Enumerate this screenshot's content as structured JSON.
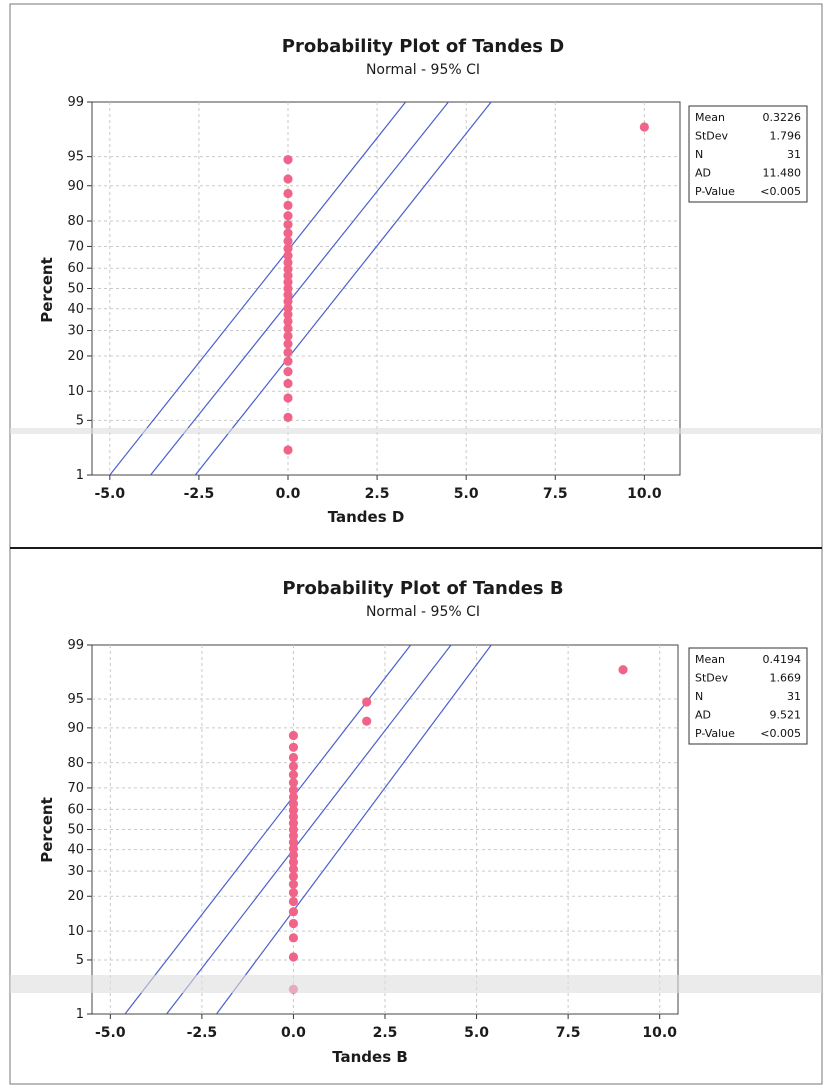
{
  "chart_data": [
    {
      "type": "scatter",
      "title": "Probability Plot of Tandes D",
      "subtitle": "Normal - 95% CI",
      "xlabel": "Tandes D",
      "ylabel": "Percent",
      "xlim": [
        -5.5,
        11.0
      ],
      "x_ticks": [
        "-5.0",
        "-2.5",
        "0.0",
        "2.5",
        "5.0",
        "7.5",
        "10.0"
      ],
      "y_ticks": [
        "1",
        "5",
        "10",
        "20",
        "30",
        "40",
        "50",
        "60",
        "70",
        "80",
        "90",
        "95",
        "99"
      ],
      "grid": true,
      "points": {
        "x": [
          0,
          0,
          0,
          0,
          0,
          0,
          0,
          0,
          0,
          0,
          0,
          0,
          0,
          0,
          0,
          0,
          0,
          0,
          0,
          0,
          0,
          0,
          0,
          0,
          0,
          0,
          0,
          0,
          0,
          0,
          10
        ],
        "y": [
          2.2,
          5.4,
          8.6,
          11.8,
          15.0,
          18.2,
          21.3,
          24.5,
          27.7,
          30.9,
          34.1,
          37.3,
          40.4,
          43.6,
          46.8,
          50.0,
          53.2,
          56.4,
          59.6,
          62.7,
          65.9,
          69.1,
          72.3,
          75.5,
          78.7,
          81.8,
          85.0,
          88.2,
          91.4,
          94.6,
          97.8
        ]
      },
      "fit_line": {
        "mean": 0.3226,
        "stdev": 1.796
      },
      "ci_lines": [
        {
          "name": "lower",
          "x": [
            -2.6,
            5.7
          ],
          "y": [
            1,
            99
          ]
        },
        {
          "name": "upper",
          "x": [
            -5.0,
            3.3
          ],
          "y": [
            1,
            99
          ]
        }
      ],
      "stats": {
        "labels": [
          "Mean",
          "StDev",
          "N",
          "AD",
          "P-Value"
        ],
        "values": [
          "0.3226",
          "1.796",
          "31",
          "11.480",
          "<0.005"
        ]
      },
      "color": "#f0648a",
      "line_color": "#4a5fd0"
    },
    {
      "type": "scatter",
      "title": "Probability Plot of Tandes B",
      "subtitle": "Normal - 95% CI",
      "xlabel": "Tandes B",
      "ylabel": "Percent",
      "xlim": [
        -5.5,
        10.5
      ],
      "x_ticks": [
        "-5.0",
        "-2.5",
        "0.0",
        "2.5",
        "5.0",
        "7.5",
        "10.0"
      ],
      "y_ticks": [
        "1",
        "5",
        "10",
        "20",
        "30",
        "40",
        "50",
        "60",
        "70",
        "80",
        "90",
        "95",
        "99"
      ],
      "grid": true,
      "points": {
        "x": [
          0,
          0,
          0,
          0,
          0,
          0,
          0,
          0,
          0,
          0,
          0,
          0,
          0,
          0,
          0,
          0,
          0,
          0,
          0,
          0,
          0,
          0,
          0,
          0,
          0,
          0,
          0,
          0,
          2,
          2,
          9
        ],
        "y": [
          2.2,
          5.4,
          8.6,
          11.8,
          15.0,
          18.2,
          21.3,
          24.5,
          27.7,
          30.9,
          34.1,
          37.3,
          40.4,
          43.6,
          46.8,
          50.0,
          53.2,
          56.4,
          59.6,
          62.7,
          65.9,
          69.1,
          72.3,
          75.5,
          78.7,
          81.8,
          85.0,
          88.2,
          91.4,
          94.6,
          97.8
        ]
      },
      "fit_line": {
        "mean": 0.4194,
        "stdev": 1.669
      },
      "ci_lines": [
        {
          "name": "lower",
          "x": [
            -2.1,
            5.4
          ],
          "y": [
            1,
            99
          ]
        },
        {
          "name": "upper",
          "x": [
            -4.6,
            3.2
          ],
          "y": [
            1,
            99
          ]
        }
      ],
      "stats": {
        "labels": [
          "Mean",
          "StDev",
          "N",
          "AD",
          "P-Value"
        ],
        "values": [
          "0.4194",
          "1.669",
          "31",
          "9.521",
          "<0.005"
        ]
      },
      "color": "#f0648a",
      "line_color": "#4a5fd0"
    }
  ]
}
